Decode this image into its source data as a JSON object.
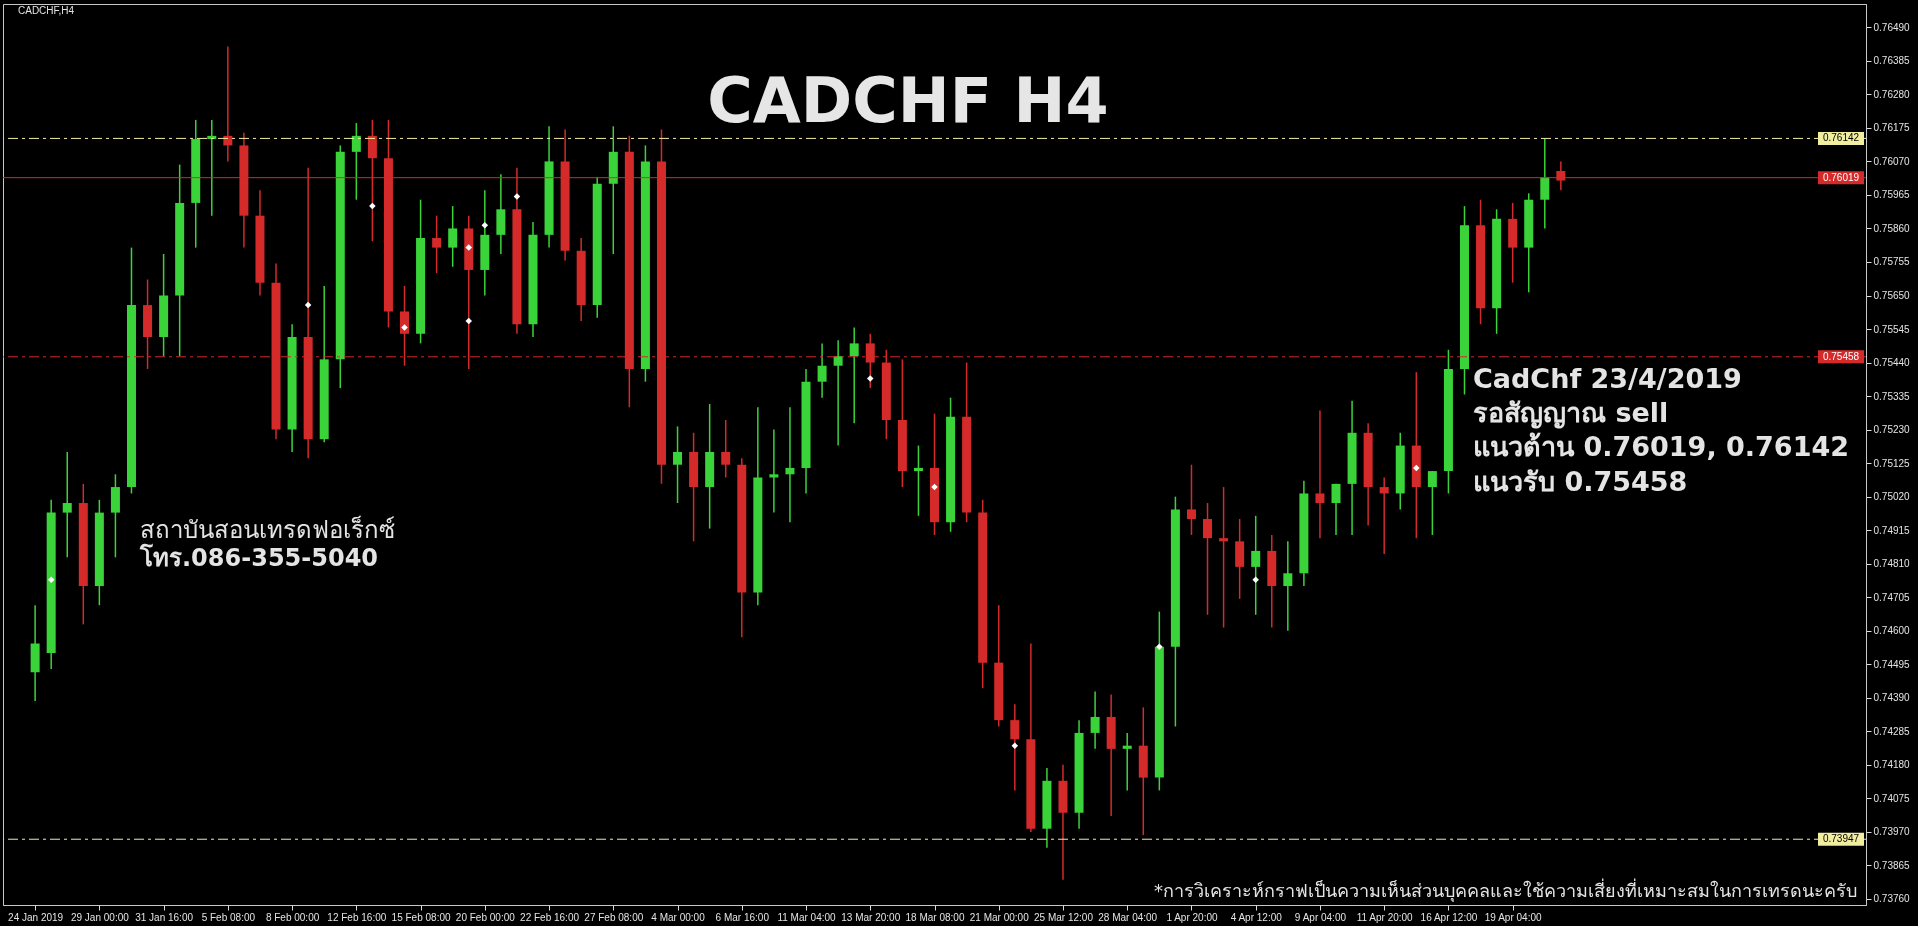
{
  "chart_data": {
    "type": "candlestick",
    "title": "CADCHF  H4",
    "annotations": [
      "CADCHF,H4",
      "CadChf 23/4/2019",
      "รอสัญญาณ sell",
      "แนวต้าน 0.76019, 0.76142",
      "แนวรับ 0.75458",
      "สถาบันสอนเทรดฟอเร็กซ์",
      "โทร.086-355-5040",
      "*การวิเคราะห์กราฟเป็นความเห็นส่วนบุคคลและใช้ความเสี่ยงที่เหมาะสมในการเทรดนะครับ"
    ],
    "categories": [
      "24 Jan 2019",
      null,
      null,
      null,
      "29 Jan 00:00",
      null,
      null,
      null,
      "31 Jan 16:00",
      null,
      null,
      null,
      "5 Feb 08:00",
      null,
      null,
      null,
      "8 Feb 00:00",
      null,
      null,
      null,
      "12 Feb 16:00",
      null,
      null,
      null,
      "15 Feb 08:00",
      null,
      null,
      null,
      "20 Feb 00:00",
      null,
      null,
      null,
      "22 Feb 16:00",
      null,
      null,
      null,
      "27 Feb 08:00",
      null,
      null,
      null,
      "4 Mar 00:00",
      null,
      null,
      null,
      "6 Mar 16:00",
      null,
      null,
      null,
      "11 Mar 04:00",
      null,
      null,
      null,
      "13 Mar 20:00",
      null,
      null,
      null,
      "18 Mar 08:00",
      null,
      null,
      null,
      "21 Mar 00:00",
      null,
      null,
      null,
      "25 Mar 12:00",
      null,
      null,
      null,
      "28 Mar 04:00",
      null,
      null,
      null,
      "1 Apr 20:00",
      null,
      null,
      null,
      "4 Apr 12:00",
      null,
      null,
      null,
      "9 Apr 04:00",
      null,
      null,
      null,
      "11 Apr 20:00",
      null,
      null,
      null,
      "16 Apr 12:00",
      null,
      null,
      null,
      "19 Apr 04:00",
      null,
      null,
      null,
      null,
      null,
      null,
      null,
      null,
      null,
      null,
      null,
      null,
      null,
      null,
      null,
      null,
      null,
      null,
      null,
      null,
      null,
      null
    ],
    "ohlc": [
      [
        0.7447,
        0.7468,
        0.7438,
        0.7456
      ],
      [
        0.7453,
        0.7501,
        0.7448,
        0.7497
      ],
      [
        0.7497,
        0.7516,
        0.7483,
        0.75
      ],
      [
        0.75,
        0.7506,
        0.7462,
        0.7474
      ],
      [
        0.7474,
        0.7501,
        0.7468,
        0.7497
      ],
      [
        0.7497,
        0.7509,
        0.7483,
        0.7505
      ],
      [
        0.7505,
        0.758,
        0.7503,
        0.7562
      ],
      [
        0.7562,
        0.757,
        0.7542,
        0.7552
      ],
      [
        0.7552,
        0.7578,
        0.7546,
        0.7565
      ],
      [
        0.7565,
        0.7606,
        0.7546,
        0.7594
      ],
      [
        0.7594,
        0.762,
        0.758,
        0.7614
      ],
      [
        0.7614,
        0.762,
        0.759,
        0.7615
      ],
      [
        0.7615,
        0.7643,
        0.7607,
        0.7612
      ],
      [
        0.7612,
        0.7616,
        0.758,
        0.759
      ],
      [
        0.759,
        0.7598,
        0.7565,
        0.7569
      ],
      [
        0.7569,
        0.7575,
        0.752,
        0.7523
      ],
      [
        0.7523,
        0.7556,
        0.7516,
        0.7552
      ],
      [
        0.7552,
        0.7605,
        0.7514,
        0.752
      ],
      [
        0.752,
        0.7568,
        0.7519,
        0.7545
      ],
      [
        0.7545,
        0.7612,
        0.7536,
        0.761
      ],
      [
        0.761,
        0.7619,
        0.7595,
        0.7615
      ],
      [
        0.7615,
        0.762,
        0.7582,
        0.7608
      ],
      [
        0.7608,
        0.762,
        0.7555,
        0.756
      ],
      [
        0.756,
        0.7568,
        0.7543,
        0.7553
      ],
      [
        0.7553,
        0.7595,
        0.755,
        0.7583
      ],
      [
        0.7583,
        0.759,
        0.7572,
        0.758
      ],
      [
        0.758,
        0.7593,
        0.7574,
        0.7586
      ],
      [
        0.7586,
        0.759,
        0.7542,
        0.7573
      ],
      [
        0.7573,
        0.7598,
        0.7565,
        0.7584
      ],
      [
        0.7584,
        0.7603,
        0.7578,
        0.7592
      ],
      [
        0.7592,
        0.7605,
        0.7553,
        0.7556
      ],
      [
        0.7556,
        0.7588,
        0.7552,
        0.7584
      ],
      [
        0.7584,
        0.7618,
        0.758,
        0.7607
      ],
      [
        0.7607,
        0.7617,
        0.7576,
        0.7579
      ],
      [
        0.7579,
        0.7583,
        0.7557,
        0.7562
      ],
      [
        0.7562,
        0.7602,
        0.7558,
        0.76
      ],
      [
        0.76,
        0.7618,
        0.7578,
        0.761
      ],
      [
        0.761,
        0.7615,
        0.753,
        0.7542
      ],
      [
        0.7542,
        0.7612,
        0.7538,
        0.7607
      ],
      [
        0.7607,
        0.7617,
        0.7506,
        0.7512
      ],
      [
        0.7512,
        0.7524,
        0.75,
        0.7516
      ],
      [
        0.7516,
        0.7522,
        0.7488,
        0.7505
      ],
      [
        0.7505,
        0.7531,
        0.7492,
        0.7516
      ],
      [
        0.7516,
        0.7526,
        0.7508,
        0.7512
      ],
      [
        0.7512,
        0.7514,
        0.7458,
        0.7472
      ],
      [
        0.7472,
        0.753,
        0.7468,
        0.7508
      ],
      [
        0.7508,
        0.7523,
        0.7497,
        0.7509
      ],
      [
        0.7509,
        0.753,
        0.7494,
        0.7511
      ],
      [
        0.7511,
        0.7542,
        0.7503,
        0.7538
      ],
      [
        0.7538,
        0.755,
        0.7533,
        0.7543
      ],
      [
        0.7543,
        0.7551,
        0.7518,
        0.7546
      ],
      [
        0.7546,
        0.7555,
        0.7525,
        0.755
      ],
      [
        0.755,
        0.7553,
        0.7536,
        0.7544
      ],
      [
        0.7544,
        0.7548,
        0.752,
        0.7526
      ],
      [
        0.7526,
        0.7545,
        0.7505,
        0.751
      ],
      [
        0.751,
        0.7518,
        0.7496,
        0.7511
      ],
      [
        0.7511,
        0.7528,
        0.749,
        0.7494
      ],
      [
        0.7494,
        0.7533,
        0.7491,
        0.7527
      ],
      [
        0.7527,
        0.7544,
        0.7494,
        0.7497
      ],
      [
        0.7497,
        0.7501,
        0.7442,
        0.745
      ],
      [
        0.745,
        0.7468,
        0.743,
        0.7432
      ],
      [
        0.7432,
        0.7437,
        0.741,
        0.7426
      ],
      [
        0.7426,
        0.7456,
        0.7397,
        0.7398
      ],
      [
        0.7398,
        0.7417,
        0.7392,
        0.7413
      ],
      [
        0.7413,
        0.7418,
        0.7382,
        0.7403
      ],
      [
        0.7403,
        0.7432,
        0.7398,
        0.7428
      ],
      [
        0.7428,
        0.7441,
        0.7423,
        0.7433
      ],
      [
        0.7433,
        0.744,
        0.7402,
        0.7423
      ],
      [
        0.7423,
        0.7428,
        0.741,
        0.7424
      ],
      [
        0.7424,
        0.7436,
        0.7396,
        0.7414
      ],
      [
        0.7414,
        0.7466,
        0.741,
        0.7455
      ],
      [
        0.7455,
        0.7502,
        0.743,
        0.7498
      ],
      [
        0.7498,
        0.7512,
        0.749,
        0.7495
      ],
      [
        0.7495,
        0.75,
        0.7465,
        0.7489
      ],
      [
        0.7489,
        0.7505,
        0.7461,
        0.7488
      ],
      [
        0.7488,
        0.7495,
        0.747,
        0.748
      ],
      [
        0.748,
        0.7496,
        0.7465,
        0.7485
      ],
      [
        0.7485,
        0.749,
        0.7461,
        0.7474
      ],
      [
        0.7474,
        0.7488,
        0.746,
        0.7478
      ],
      [
        0.7478,
        0.7507,
        0.7474,
        0.7503
      ],
      [
        0.7503,
        0.7529,
        0.7489,
        0.75
      ],
      [
        0.75,
        0.7506,
        0.749,
        0.7506
      ],
      [
        0.7506,
        0.7532,
        0.749,
        0.7522
      ],
      [
        0.7522,
        0.7525,
        0.7493,
        0.7505
      ],
      [
        0.7505,
        0.7508,
        0.7484,
        0.7503
      ],
      [
        0.7503,
        0.7522,
        0.7498,
        0.7518
      ],
      [
        0.7518,
        0.7541,
        0.7489,
        0.7505
      ],
      [
        0.7505,
        0.751,
        0.749,
        0.751
      ],
      [
        0.751,
        0.7548,
        0.7503,
        0.7542
      ],
      [
        0.7542,
        0.7593,
        0.7534,
        0.7587
      ],
      [
        0.7587,
        0.7595,
        0.7556,
        0.7561
      ],
      [
        0.7561,
        0.7592,
        0.7553,
        0.7589
      ],
      [
        0.7589,
        0.7594,
        0.7569,
        0.758
      ],
      [
        0.758,
        0.7597,
        0.7566,
        0.7595
      ],
      [
        0.7595,
        0.7614,
        0.7586,
        0.7602
      ],
      [
        0.7604,
        0.7607,
        0.7598,
        0.7601
      ],
      null,
      null,
      null,
      null,
      null,
      null,
      null,
      null,
      null,
      null,
      null,
      null,
      null,
      null,
      null,
      null,
      null,
      null,
      null
    ],
    "colors": [
      "#3ad43a",
      "#3ad43a",
      "#3ad43a",
      "#d42a2a",
      "#3ad43a",
      "#3ad43a",
      "#3ad43a",
      "#d42a2a",
      "#3ad43a",
      "#3ad43a",
      "#3ad43a",
      "#3ad43a",
      "#d42a2a",
      "#d42a2a",
      "#d42a2a",
      "#d42a2a",
      "#3ad43a",
      "#d42a2a",
      "#3ad43a",
      "#3ad43a",
      "#3ad43a",
      "#d42a2a",
      "#d42a2a",
      "#d42a2a",
      "#3ad43a",
      "#d42a2a",
      "#3ad43a",
      "#d42a2a",
      "#3ad43a",
      "#3ad43a",
      "#d42a2a",
      "#3ad43a",
      "#3ad43a",
      "#d42a2a",
      "#d42a2a",
      "#3ad43a",
      "#3ad43a",
      "#d42a2a",
      "#3ad43a",
      "#d42a2a",
      "#3ad43a",
      "#d42a2a",
      "#3ad43a",
      "#d42a2a",
      "#d42a2a",
      "#3ad43a",
      "#3ad43a",
      "#3ad43a",
      "#3ad43a",
      "#3ad43a",
      "#3ad43a",
      "#3ad43a",
      "#d42a2a",
      "#d42a2a",
      "#d42a2a",
      "#3ad43a",
      "#d42a2a",
      "#3ad43a",
      "#d42a2a",
      "#d42a2a",
      "#d42a2a",
      "#d42a2a",
      "#d42a2a",
      "#3ad43a",
      "#d42a2a",
      "#3ad43a",
      "#3ad43a",
      "#d42a2a",
      "#3ad43a",
      "#d42a2a",
      "#3ad43a",
      "#3ad43a",
      "#d42a2a",
      "#d42a2a",
      "#d42a2a",
      "#d42a2a",
      "#3ad43a",
      "#d42a2a",
      "#3ad43a",
      "#3ad43a",
      "#d42a2a",
      "#3ad43a",
      "#3ad43a",
      "#d42a2a",
      "#d42a2a",
      "#3ad43a",
      "#d42a2a",
      "#3ad43a",
      "#3ad43a",
      "#3ad43a",
      "#d42a2a",
      "#3ad43a",
      "#d42a2a",
      "#3ad43a",
      "#3ad43a",
      "#d42a2a",
      null,
      null,
      null,
      null,
      null,
      null,
      null,
      null,
      null,
      null,
      null,
      null,
      null,
      null,
      null,
      null,
      null,
      null,
      null
    ],
    "series": [
      {
        "type": "scatter",
        "color": "#ffffff",
        "marker": "diamond",
        "values": [
          null,
          0.7476,
          null,
          null,
          null,
          null,
          null,
          null,
          null,
          null,
          null,
          null,
          null,
          null,
          null,
          null,
          null,
          0.7562,
          null,
          null,
          null,
          0.7593,
          null,
          0.7555,
          null,
          null,
          null,
          0.758,
          0.7587,
          null,
          0.7596,
          null,
          null,
          null,
          null,
          null,
          null,
          null,
          null,
          null,
          null,
          null,
          null,
          null,
          null,
          null,
          null,
          null,
          null,
          null,
          null,
          null,
          0.7539,
          null,
          null,
          null,
          0.7505,
          null,
          null,
          null,
          null,
          0.7424,
          null,
          null,
          null,
          null,
          null,
          null,
          null,
          null,
          0.7455,
          null,
          null,
          null,
          null,
          null,
          0.7476,
          null,
          null,
          null,
          null,
          null,
          null,
          null,
          null,
          null,
          0.7511,
          null,
          null,
          null,
          null,
          null,
          null,
          null,
          null,
          null,
          null,
          null,
          null,
          null,
          null,
          null,
          null,
          null,
          null,
          null,
          null,
          null,
          null,
          null,
          null,
          null,
          null,
          null,
          null
        ]
      },
      {
        "type": "scatter",
        "color": "#ffffff",
        "marker": "diamond",
        "values": [
          null,
          null,
          null,
          null,
          null,
          null,
          null,
          null,
          null,
          null,
          null,
          null,
          null,
          null,
          null,
          null,
          null,
          null,
          null,
          null,
          null,
          null,
          null,
          null,
          null,
          null,
          null,
          0.7557,
          null,
          null,
          null,
          null,
          null,
          null,
          null,
          null,
          null,
          null,
          null,
          null,
          null,
          null,
          null,
          null,
          null,
          null,
          null,
          null,
          null,
          null,
          null,
          null,
          null,
          null,
          null,
          null,
          null,
          null,
          null,
          null,
          null,
          null,
          null,
          null,
          null,
          null,
          null,
          null,
          null,
          null,
          null,
          null,
          null,
          null,
          null,
          null,
          null,
          null,
          null,
          null,
          null,
          null,
          null,
          null,
          null,
          null,
          null,
          null,
          null,
          null,
          null,
          null,
          null,
          null,
          null,
          null,
          null,
          null,
          null,
          null,
          null,
          null,
          null,
          null,
          null,
          null,
          null,
          null,
          null,
          null,
          null,
          null,
          null,
          null,
          null
        ]
      }
    ],
    "ylim": [
      0.73741,
      0.76563
    ],
    "yticks": [
      {
        "value": 0.7376,
        "label": "0.73760"
      },
      0.73865,
      {
        "value": 0.7397,
        "label": "0.73970"
      },
      0.74075,
      {
        "value": 0.7418,
        "label": "0.74180"
      },
      0.74285,
      {
        "value": 0.7439,
        "label": "0.74390"
      },
      0.74495,
      {
        "value": 0.746,
        "label": "0.74600"
      },
      0.74705,
      {
        "value": 0.7481,
        "label": "0.74810"
      },
      0.74915,
      {
        "value": 0.7502,
        "label": "0.75020"
      },
      0.75125,
      {
        "value": 0.7523,
        "label": "0.75230"
      },
      0.75335,
      {
        "value": 0.7544,
        "label": "0.75440"
      },
      0.75545,
      {
        "value": 0.7565,
        "label": "0.75650"
      },
      0.75755,
      {
        "value": 0.7586,
        "label": "0.75860"
      },
      0.75965,
      {
        "value": 0.7607,
        "label": "0.76070"
      },
      0.76175,
      {
        "value": 0.7628,
        "label": "0.76280"
      },
      0.76385,
      {
        "value": 0.7649,
        "label": "0.76490"
      }
    ],
    "ref_lines": [
      {
        "axis": "y",
        "value": 0.76142,
        "label": "0.76142",
        "color": "#f2eea0",
        "line_style": "dashed"
      },
      {
        "axis": "y",
        "value": 0.76019,
        "label": "0.76019",
        "color": "#d42a2a",
        "line_style": "solid"
      },
      {
        "axis": "y",
        "value": 0.75458,
        "label": "0.75458",
        "color": "#d42a2a",
        "line_style": "dashed"
      },
      {
        "axis": "y",
        "value": 0.73947,
        "label": "0.73947",
        "color": "#f2eea0",
        "line_style": "dashed"
      }
    ],
    "grid": false
  }
}
